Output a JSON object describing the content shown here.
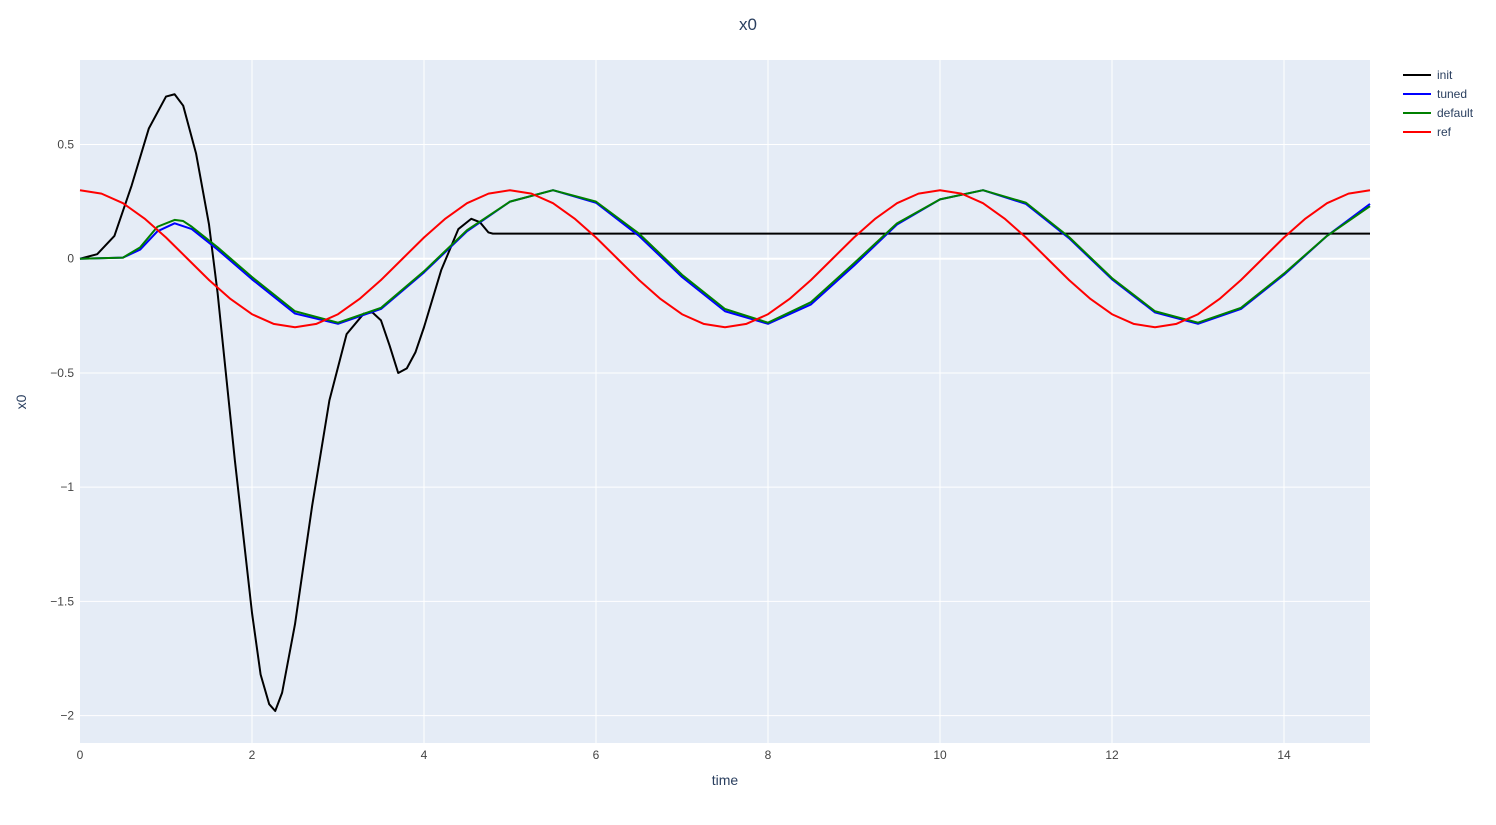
{
  "chart_data": {
    "type": "line",
    "title": "x0",
    "xlabel": "time",
    "ylabel": "x0",
    "xlim": [
      0,
      15
    ],
    "ylim": [
      -2.12,
      0.87
    ],
    "x_ticks": [
      0,
      2,
      4,
      6,
      8,
      10,
      12,
      14
    ],
    "x_tick_labels": [
      "0",
      "2",
      "4",
      "6",
      "8",
      "10",
      "12",
      "14"
    ],
    "y_ticks": [
      0.5,
      0,
      -0.5,
      -1,
      -1.5,
      -2
    ],
    "y_tick_labels": [
      "0.5",
      "0",
      "−0.5",
      "−1",
      "−1.5",
      "−2"
    ],
    "grid": true,
    "legend_position": "top-right",
    "plot_background": "#e5ecf6",
    "series": [
      {
        "name": "init",
        "color": "#000000",
        "x": [
          0,
          0.2,
          0.4,
          0.6,
          0.8,
          1.0,
          1.1,
          1.2,
          1.35,
          1.5,
          1.6,
          1.8,
          2.0,
          2.1,
          2.2,
          2.27,
          2.35,
          2.5,
          2.7,
          2.9,
          3.1,
          3.3,
          3.4,
          3.5,
          3.6,
          3.7,
          3.8,
          3.9,
          4.0,
          4.2,
          4.4,
          4.55,
          4.65,
          4.75,
          4.8,
          5,
          6,
          7,
          8,
          9,
          10,
          11,
          12,
          13,
          14,
          15
        ],
        "y": [
          0,
          0.02,
          0.1,
          0.32,
          0.57,
          0.71,
          0.72,
          0.67,
          0.46,
          0.15,
          -0.15,
          -0.88,
          -1.55,
          -1.82,
          -1.95,
          -1.98,
          -1.9,
          -1.6,
          -1.08,
          -0.62,
          -0.33,
          -0.24,
          -0.235,
          -0.27,
          -0.38,
          -0.5,
          -0.48,
          -0.41,
          -0.3,
          -0.05,
          0.13,
          0.175,
          0.16,
          0.115,
          0.11,
          0.11,
          0.11,
          0.11,
          0.11,
          0.11,
          0.11,
          0.11,
          0.11,
          0.11,
          0.11,
          0.11
        ]
      },
      {
        "name": "tuned",
        "color": "#0000ff",
        "x": [
          0,
          0.5,
          0.7,
          0.9,
          1.1,
          1.3,
          1.6,
          2.0,
          2.5,
          3.0,
          3.5,
          4.0,
          4.5,
          5.0,
          5.5,
          6.0,
          6.5,
          7.0,
          7.5,
          8.0,
          8.5,
          9.0,
          9.5,
          10.0,
          10.5,
          11.0,
          11.5,
          12.0,
          12.5,
          13.0,
          13.5,
          14.0,
          14.5,
          15.0
        ],
        "y": [
          0,
          0.005,
          0.04,
          0.12,
          0.155,
          0.13,
          0.04,
          -0.09,
          -0.24,
          -0.285,
          -0.22,
          -0.06,
          0.12,
          0.25,
          0.3,
          0.245,
          0.1,
          -0.08,
          -0.23,
          -0.285,
          -0.2,
          -0.03,
          0.15,
          0.26,
          0.3,
          0.24,
          0.09,
          -0.09,
          -0.235,
          -0.285,
          -0.22,
          -0.07,
          0.1,
          0.24
        ]
      },
      {
        "name": "default",
        "color": "#008000",
        "x": [
          0,
          0.5,
          0.7,
          0.9,
          1.1,
          1.2,
          1.3,
          1.6,
          2.0,
          2.5,
          3.0,
          3.5,
          4.0,
          4.5,
          5.0,
          5.5,
          6.0,
          6.5,
          7.0,
          7.5,
          8.0,
          8.5,
          9.0,
          9.5,
          10.0,
          10.5,
          11.0,
          11.5,
          12.0,
          12.5,
          13.0,
          13.5,
          14.0,
          14.5,
          15.0
        ],
        "y": [
          0,
          0.005,
          0.05,
          0.14,
          0.17,
          0.165,
          0.14,
          0.05,
          -0.08,
          -0.23,
          -0.28,
          -0.215,
          -0.055,
          0.125,
          0.25,
          0.3,
          0.25,
          0.11,
          -0.07,
          -0.22,
          -0.28,
          -0.19,
          -0.02,
          0.155,
          0.26,
          0.3,
          0.245,
          0.095,
          -0.085,
          -0.23,
          -0.28,
          -0.215,
          -0.065,
          0.1,
          0.23
        ]
      },
      {
        "name": "ref",
        "color": "#ff0000",
        "x": [
          0,
          0.25,
          0.5,
          0.75,
          1.0,
          1.25,
          1.5,
          1.75,
          2.0,
          2.25,
          2.5,
          2.75,
          3.0,
          3.25,
          3.5,
          3.75,
          4.0,
          4.25,
          4.5,
          4.75,
          5.0,
          5.25,
          5.5,
          5.75,
          6.0,
          6.25,
          6.5,
          6.75,
          7.0,
          7.25,
          7.5,
          7.75,
          8.0,
          8.25,
          8.5,
          8.75,
          9.0,
          9.25,
          9.5,
          9.75,
          10.0,
          10.25,
          10.5,
          10.75,
          11.0,
          11.25,
          11.5,
          11.75,
          12.0,
          12.25,
          12.5,
          12.75,
          13.0,
          13.25,
          13.5,
          13.75,
          14.0,
          14.25,
          14.5,
          14.75,
          15.0
        ],
        "y": [
          0.3,
          0.285,
          0.243,
          0.176,
          0.093,
          0.0,
          -0.093,
          -0.176,
          -0.243,
          -0.285,
          -0.3,
          -0.285,
          -0.243,
          -0.176,
          -0.093,
          0.0,
          0.093,
          0.176,
          0.243,
          0.285,
          0.3,
          0.285,
          0.243,
          0.176,
          0.093,
          0.0,
          -0.093,
          -0.176,
          -0.243,
          -0.285,
          -0.3,
          -0.285,
          -0.243,
          -0.176,
          -0.093,
          0.0,
          0.093,
          0.176,
          0.243,
          0.285,
          0.3,
          0.285,
          0.243,
          0.176,
          0.093,
          0.0,
          -0.093,
          -0.176,
          -0.243,
          -0.285,
          -0.3,
          -0.285,
          -0.243,
          -0.176,
          -0.093,
          0.0,
          0.093,
          0.176,
          0.243,
          0.285,
          0.3
        ]
      }
    ]
  }
}
